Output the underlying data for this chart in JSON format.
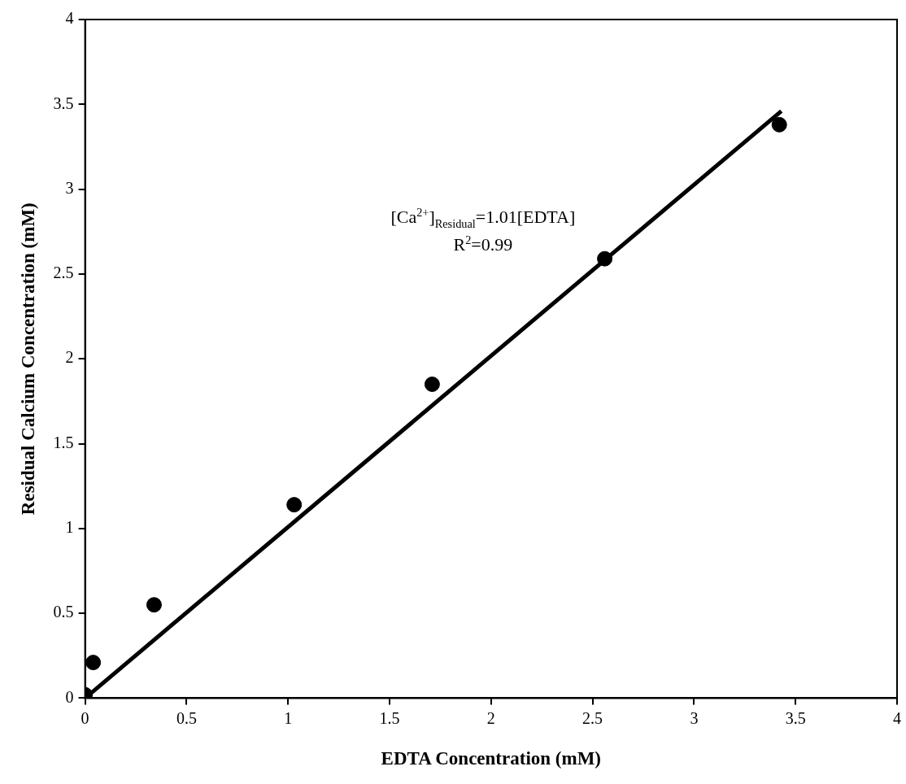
{
  "chart_data": {
    "type": "scatter",
    "xlabel": "EDTA Concentration (mM)",
    "ylabel": "Residual Calcium Concentration (mM)",
    "xlim": [
      0,
      4
    ],
    "xticks": [
      0,
      0.5,
      1,
      1.5,
      2,
      2.5,
      3,
      3.5,
      4
    ],
    "ylim": [
      0,
      4
    ],
    "yticks": [
      0,
      0.5,
      1,
      1.5,
      2,
      2.5,
      3,
      3.5,
      4
    ],
    "grid": false,
    "legend": false,
    "marker": "circle",
    "series": [
      {
        "type": "scatter",
        "color": "#000000",
        "x": [
          0,
          0.04,
          0.34,
          1.03,
          1.71,
          2.56,
          3.42
        ],
        "values": [
          0.02,
          0.21,
          0.55,
          1.14,
          1.85,
          2.59,
          3.38
        ]
      },
      {
        "type": "line",
        "color": "#000000",
        "marker": "none",
        "line_style": "solid",
        "x": [
          0,
          3.43
        ],
        "values": [
          0,
          3.46
        ]
      }
    ],
    "annotations": [
      "[Ca$^{2+}$]$_{Residual}$=1.01[EDTA]",
      "R$^{2}$=0.99"
    ]
  }
}
